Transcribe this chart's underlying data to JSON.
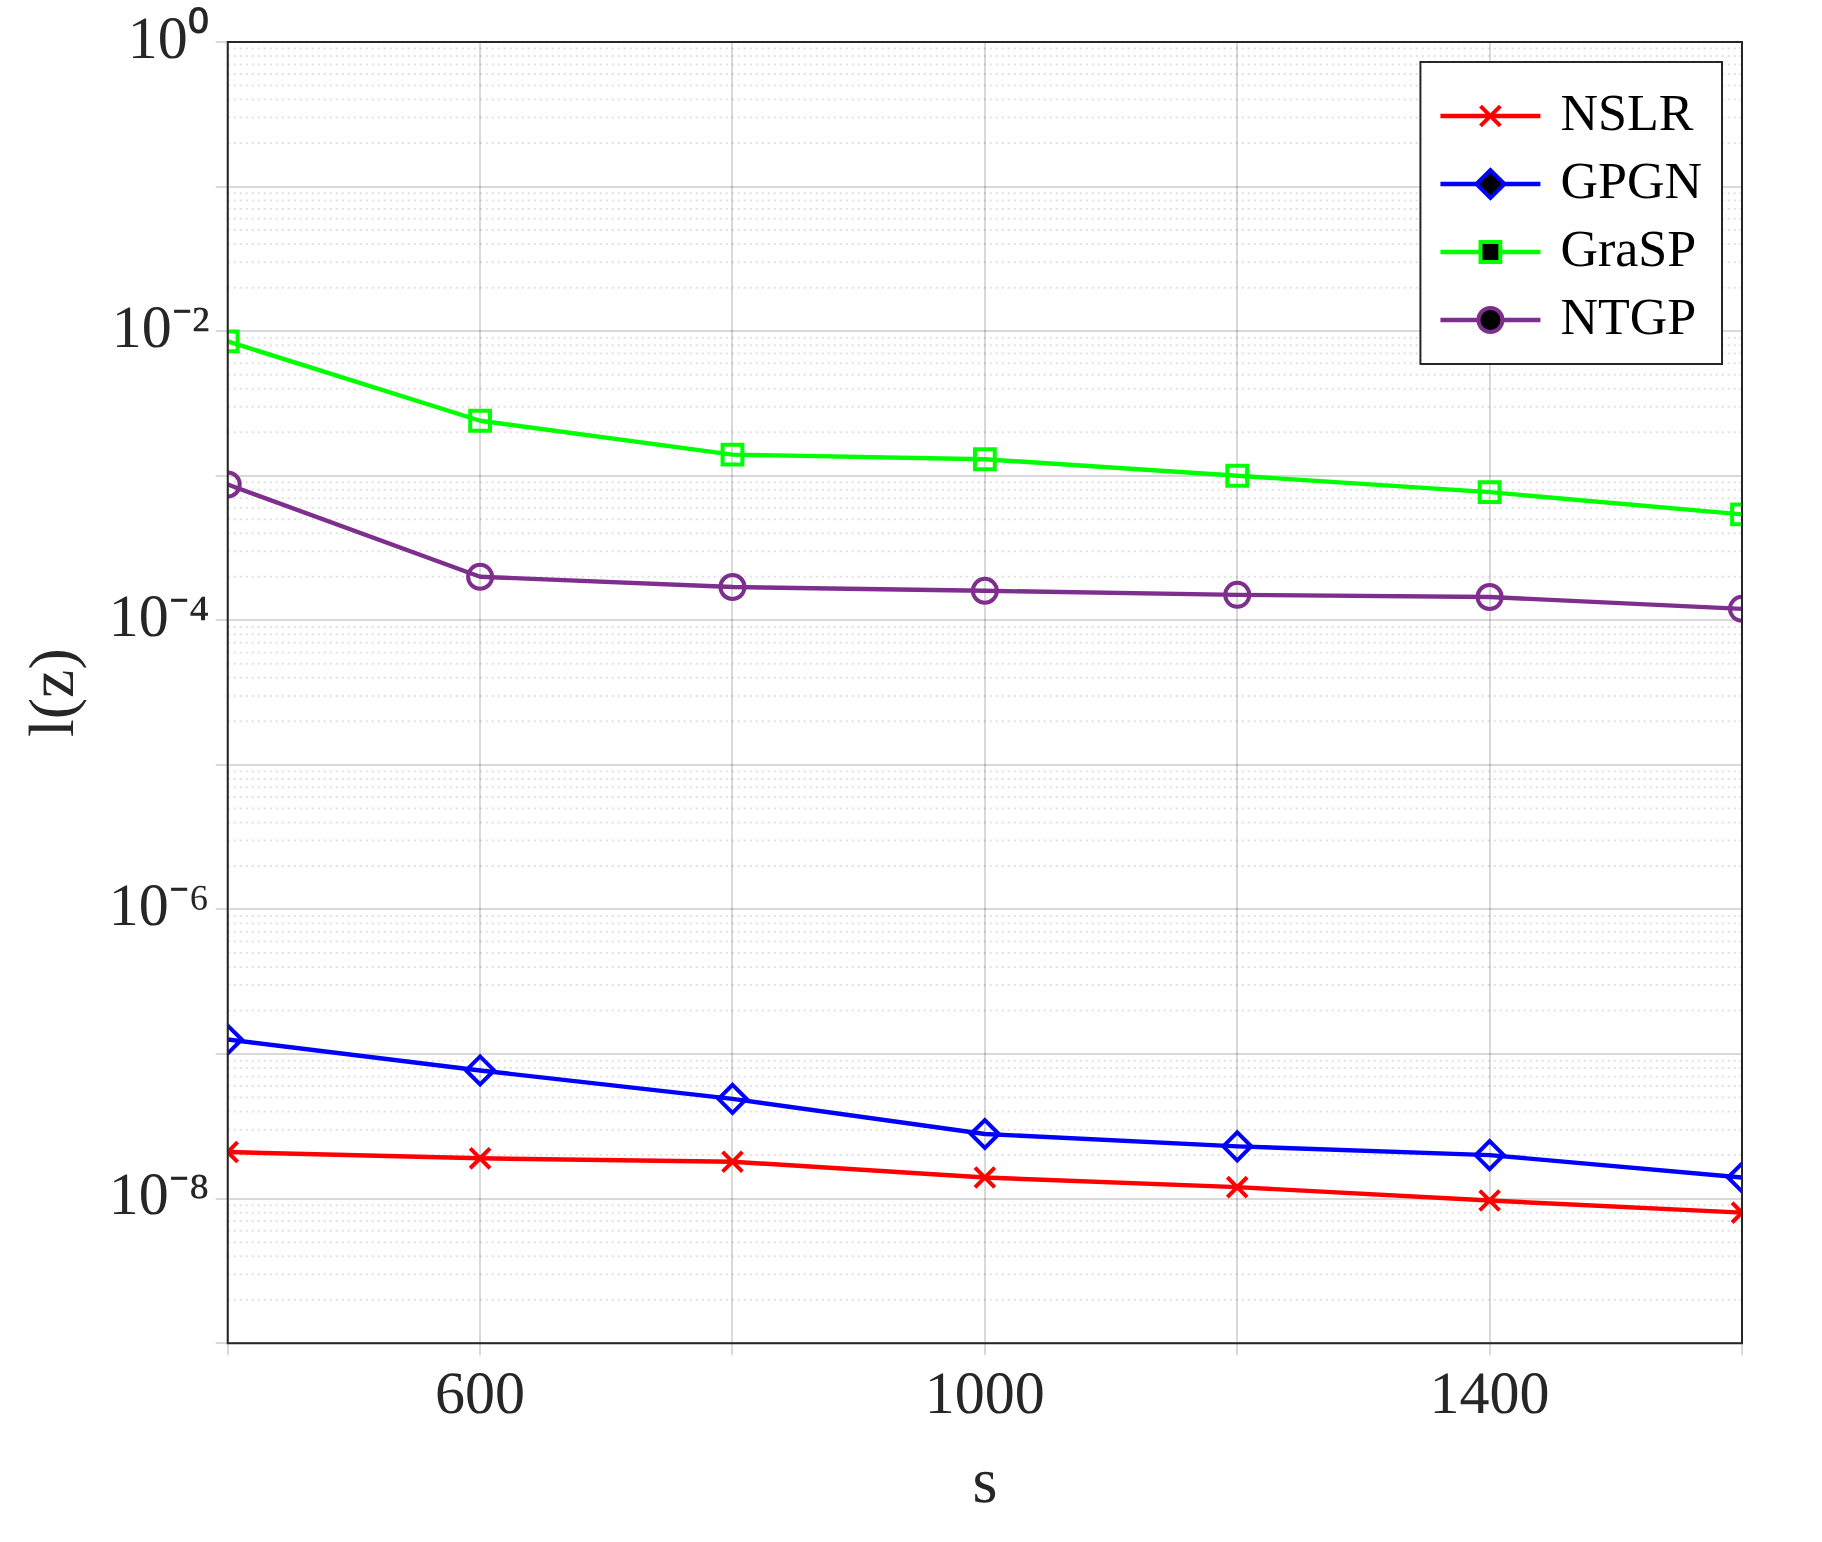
{
  "chart_data": {
    "type": "line",
    "xlabel": "s",
    "ylabel": "l(z)",
    "x": [
      400,
      600,
      800,
      1000,
      1200,
      1400,
      1600
    ],
    "series": [
      {
        "name": "NSLR",
        "color": "#ff0000",
        "marker": "cross",
        "values": [
          2.1e-08,
          1.9e-08,
          1.8e-08,
          1.4e-08,
          1.2e-08,
          9.7e-09,
          8e-09
        ]
      },
      {
        "name": "GPGN",
        "color": "#0000ff",
        "marker": "diamond",
        "values": [
          1.26e-07,
          7.7e-08,
          4.9e-08,
          2.8e-08,
          2.3e-08,
          2e-08,
          1.4e-08
        ]
      },
      {
        "name": "GraSP",
        "color": "#00ff00",
        "marker": "square",
        "values": [
          0.0085,
          0.0024,
          0.0014,
          0.0013,
          0.001,
          0.00077,
          0.00054
        ]
      },
      {
        "name": "NTGP",
        "color": "#7e2f8e",
        "marker": "circle",
        "values": [
          0.00087,
          0.0002,
          0.00017,
          0.00016,
          0.00015,
          0.000145,
          0.00012
        ]
      }
    ],
    "xlim": [
      400,
      1600
    ],
    "xticks": [
      {
        "value": 400,
        "label": null
      },
      600,
      {
        "value": 800,
        "label": null
      },
      1000,
      {
        "value": 1200,
        "label": null
      },
      1400,
      {
        "value": 1600,
        "label": null
      }
    ],
    "ylim": [
      1e-09,
      1
    ],
    "yticks": [
      {
        "value": 1e-09,
        "label": null
      },
      {
        "value": 1e-08,
        "label": "10⁻⁸"
      },
      {
        "value": 1e-07,
        "label": null
      },
      {
        "value": 1e-06,
        "label": "10⁻⁶"
      },
      {
        "value": 1e-05,
        "label": null
      },
      {
        "value": 0.0001,
        "label": "10⁻⁴"
      },
      {
        "value": 0.001,
        "label": null
      },
      {
        "value": 0.01,
        "label": "10⁻²"
      },
      {
        "value": 0.1,
        "label": null
      },
      {
        "value": 1,
        "label": "10⁰"
      }
    ],
    "log": "y",
    "grid": true,
    "legend": "top right",
    "line_style": "solid"
  }
}
